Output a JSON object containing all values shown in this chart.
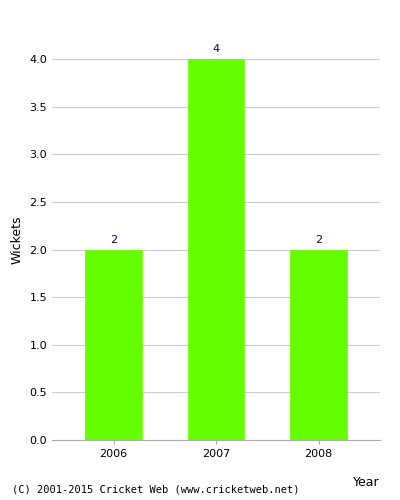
{
  "years": [
    "2006",
    "2007",
    "2008"
  ],
  "values": [
    2,
    4,
    2
  ],
  "bar_color": "#66ff00",
  "bar_edge_color": "#66ff00",
  "xlabel": "Year",
  "ylabel": "Wickets",
  "ylim": [
    0,
    4.2
  ],
  "yticks": [
    0.0,
    0.5,
    1.0,
    1.5,
    2.0,
    2.5,
    3.0,
    3.5,
    4.0
  ],
  "label_color": "#000080",
  "label_fontsize": 8,
  "axis_label_fontsize": 9,
  "tick_fontsize": 8,
  "footer_text": "(C) 2001-2015 Cricket Web (www.cricketweb.net)",
  "footer_fontsize": 7.5,
  "background_color": "#ffffff",
  "grid_color": "#cccccc",
  "bar_width": 0.55
}
